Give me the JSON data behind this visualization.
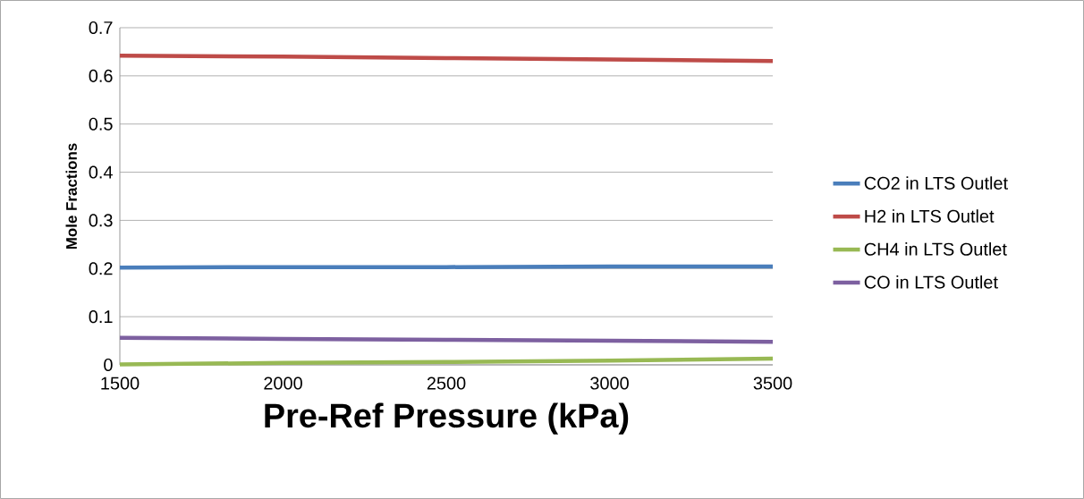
{
  "chart_data": {
    "type": "line",
    "xlabel": "Pre-Ref Pressure (kPa)",
    "ylabel": "Mole Fractions",
    "x": [
      1500,
      2000,
      2500,
      3000,
      3500
    ],
    "series": [
      {
        "name": "CO2 in LTS Outlet",
        "color": "#4a7ebb",
        "values": [
          0.202,
          0.203,
          0.203,
          0.204,
          0.204
        ]
      },
      {
        "name": "H2 in LTS Outlet",
        "color": "#be4b48",
        "values": [
          0.642,
          0.64,
          0.637,
          0.634,
          0.631
        ]
      },
      {
        "name": "CH4 in LTS Outlet",
        "color": "#98b954",
        "values": [
          0.001,
          0.004,
          0.006,
          0.009,
          0.013
        ]
      },
      {
        "name": "CO in LTS Outlet",
        "color": "#7d60a0",
        "values": [
          0.056,
          0.054,
          0.052,
          0.05,
          0.048
        ]
      }
    ],
    "xlim": [
      1500,
      3500
    ],
    "xticks": [
      1500,
      2000,
      2500,
      3000,
      3500
    ],
    "ylim": [
      0,
      0.7
    ],
    "yticks": [
      0,
      0.1,
      0.2,
      0.3,
      0.4,
      0.5,
      0.6,
      0.7
    ],
    "grid": "y",
    "legend": "right",
    "marker": "none",
    "line_style": "solid"
  }
}
